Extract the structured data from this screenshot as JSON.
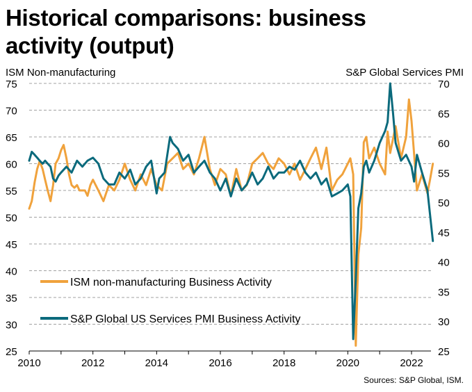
{
  "title": "Historical comparisons: business activity (output)",
  "left_axis_title": "ISM Non-manufacturing",
  "right_axis_title": "S&P Global Services PMI",
  "source": "Sources: S&P Global, ISM.",
  "chart_data": {
    "type": "line",
    "title": "Historical comparisons: business activity (output)",
    "xlabel": "",
    "ylabel_left": "ISM Non-manufacturing",
    "ylabel_right": "S&P Global Services PMI",
    "x_range": [
      2010.0,
      2022.75
    ],
    "x_ticks": [
      2010,
      2012,
      2014,
      2016,
      2018,
      2020,
      2022
    ],
    "x_tick_labels": [
      "2010",
      "2012",
      "2014",
      "2016",
      "2018",
      "2020",
      "2022"
    ],
    "ylim_left": [
      25,
      75
    ],
    "y_ticks_left": [
      25,
      30,
      35,
      40,
      45,
      50,
      55,
      60,
      65,
      70,
      75
    ],
    "ylim_right": [
      25,
      70
    ],
    "y_ticks_right": [
      25,
      30,
      35,
      40,
      45,
      50,
      55,
      60,
      65,
      70
    ],
    "grid": "horizontal dashed",
    "legend_placement": "lower-left",
    "series": [
      {
        "name": "ISM non-manufacturing Business Activity",
        "axis": "left",
        "color": "#f0a23c",
        "x": [
          2010.0,
          2010.08,
          2010.17,
          2010.25,
          2010.33,
          2010.42,
          2010.5,
          2010.58,
          2010.67,
          2010.75,
          2010.83,
          2010.92,
          2011.0,
          2011.08,
          2011.17,
          2011.25,
          2011.33,
          2011.42,
          2011.5,
          2011.58,
          2011.67,
          2011.75,
          2011.83,
          2011.92,
          2012.0,
          2012.17,
          2012.33,
          2012.5,
          2012.67,
          2012.83,
          2013.0,
          2013.17,
          2013.33,
          2013.5,
          2013.67,
          2013.83,
          2014.0,
          2014.17,
          2014.33,
          2014.5,
          2014.67,
          2014.83,
          2015.0,
          2015.17,
          2015.33,
          2015.5,
          2015.67,
          2015.83,
          2016.0,
          2016.17,
          2016.33,
          2016.5,
          2016.67,
          2016.83,
          2017.0,
          2017.17,
          2017.33,
          2017.5,
          2017.67,
          2017.83,
          2018.0,
          2018.17,
          2018.33,
          2018.5,
          2018.67,
          2018.83,
          2019.0,
          2019.17,
          2019.33,
          2019.5,
          2019.67,
          2019.83,
          2020.0,
          2020.08,
          2020.17,
          2020.25,
          2020.33,
          2020.42,
          2020.5,
          2020.58,
          2020.67,
          2020.83,
          2021.0,
          2021.17,
          2021.25,
          2021.33,
          2021.5,
          2021.67,
          2021.83,
          2021.92,
          2022.0,
          2022.17,
          2022.33,
          2022.5,
          2022.58,
          2022.67
        ],
        "values": [
          51.6,
          53,
          56.5,
          59,
          60.5,
          59,
          57,
          55,
          53,
          56,
          60,
          61,
          62.5,
          63.5,
          61,
          58,
          56,
          55.5,
          56,
          55,
          55,
          55,
          54,
          56,
          57,
          55,
          53,
          56,
          55,
          57,
          60,
          57,
          55,
          58,
          56,
          59,
          56,
          55,
          60,
          61,
          62,
          59,
          60,
          58,
          61,
          65,
          59,
          56,
          59,
          58,
          54,
          59,
          55,
          56,
          60,
          61,
          62,
          60,
          59,
          61,
          60,
          58,
          60,
          57,
          59,
          61,
          63,
          59,
          63,
          55,
          57,
          58,
          60,
          61,
          58,
          26,
          43,
          48,
          64,
          65,
          61,
          63,
          60,
          58,
          66,
          62,
          67,
          61,
          65,
          72,
          68,
          55,
          58,
          54.5,
          57,
          60
        ]
      },
      {
        "name": "S&P Global US Services PMI Business Activity",
        "axis": "right",
        "color": "#0b6a7c",
        "x": [
          2010.0,
          2010.08,
          2010.17,
          2010.25,
          2010.33,
          2010.42,
          2010.5,
          2010.58,
          2010.67,
          2010.75,
          2010.83,
          2010.92,
          2011.0,
          2011.17,
          2011.33,
          2011.5,
          2011.67,
          2011.83,
          2012.0,
          2012.17,
          2012.33,
          2012.5,
          2012.67,
          2012.83,
          2013.0,
          2013.17,
          2013.33,
          2013.5,
          2013.67,
          2013.83,
          2014.0,
          2014.08,
          2014.25,
          2014.42,
          2014.5,
          2014.67,
          2014.83,
          2015.0,
          2015.17,
          2015.33,
          2015.5,
          2015.67,
          2015.83,
          2016.0,
          2016.17,
          2016.33,
          2016.5,
          2016.67,
          2016.83,
          2017.0,
          2017.17,
          2017.33,
          2017.5,
          2017.67,
          2017.83,
          2018.0,
          2018.17,
          2018.33,
          2018.5,
          2018.67,
          2018.83,
          2019.0,
          2019.17,
          2019.33,
          2019.5,
          2019.67,
          2019.83,
          2020.0,
          2020.08,
          2020.17,
          2020.25,
          2020.33,
          2020.42,
          2020.5,
          2020.58,
          2020.67,
          2020.83,
          2021.0,
          2021.17,
          2021.25,
          2021.33,
          2021.42,
          2021.5,
          2021.67,
          2021.83,
          2022.0,
          2022.08,
          2022.17,
          2022.33,
          2022.5,
          2022.67
        ],
        "values": [
          57,
          58.5,
          58,
          57.5,
          57,
          56.5,
          57,
          56.5,
          56,
          54,
          53.5,
          54.5,
          55,
          56,
          55,
          57,
          56,
          57,
          57.5,
          56.5,
          54,
          53,
          53,
          55,
          54,
          55.5,
          53,
          54,
          56,
          57,
          51.5,
          54,
          55,
          61,
          60,
          59,
          57,
          58,
          55,
          56,
          57,
          55,
          54,
          52,
          54,
          51,
          54,
          52,
          53,
          55,
          53,
          54,
          56,
          54,
          55,
          55,
          56,
          55.5,
          57,
          55,
          54,
          55,
          53,
          54,
          51,
          51.5,
          52,
          53,
          51,
          27,
          37,
          49,
          51.5,
          56,
          57,
          55,
          57,
          60,
          62,
          63.5,
          70,
          65,
          60,
          57,
          58,
          56,
          53.5,
          58,
          55,
          52,
          43.5
        ]
      }
    ]
  }
}
